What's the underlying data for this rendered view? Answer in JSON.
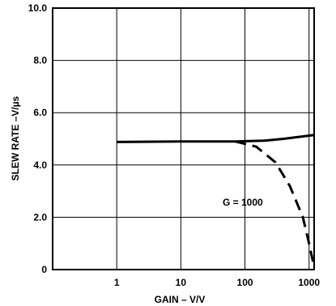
{
  "chart_data": {
    "type": "line",
    "xlabel": "GAIN – V/V",
    "ylabel": "SLEW RATE –V/µs",
    "x_scale": "log",
    "xlim": [
      0.1,
      1200
    ],
    "ylim": [
      0,
      10
    ],
    "x_ticks": [
      1,
      10,
      100,
      1000
    ],
    "x_tick_labels": [
      "1",
      "10",
      "100",
      "1000"
    ],
    "y_ticks": [
      0,
      2,
      4,
      6,
      8,
      10
    ],
    "y_tick_labels": [
      "0",
      "2.0",
      "4.0",
      "6.0",
      "8.0",
      "10.0"
    ],
    "grid": true,
    "series": [
      {
        "style": "solid",
        "x": [
          1,
          10,
          70,
          200,
          400,
          1200
        ],
        "y": [
          4.88,
          4.9,
          4.9,
          4.93,
          5.0,
          5.15
        ]
      },
      {
        "style": "dashed",
        "x": [
          70,
          150,
          300,
          500,
          800,
          1000,
          1200
        ],
        "y": [
          4.9,
          4.7,
          4.1,
          3.2,
          2.0,
          1.0,
          0.1
        ]
      }
    ],
    "annotations": [
      {
        "text": "G = 1000",
        "x": 200,
        "y": 2.6
      }
    ]
  },
  "colors": {
    "line": "#000000",
    "grid": "#000000",
    "background": "#ffffff"
  }
}
